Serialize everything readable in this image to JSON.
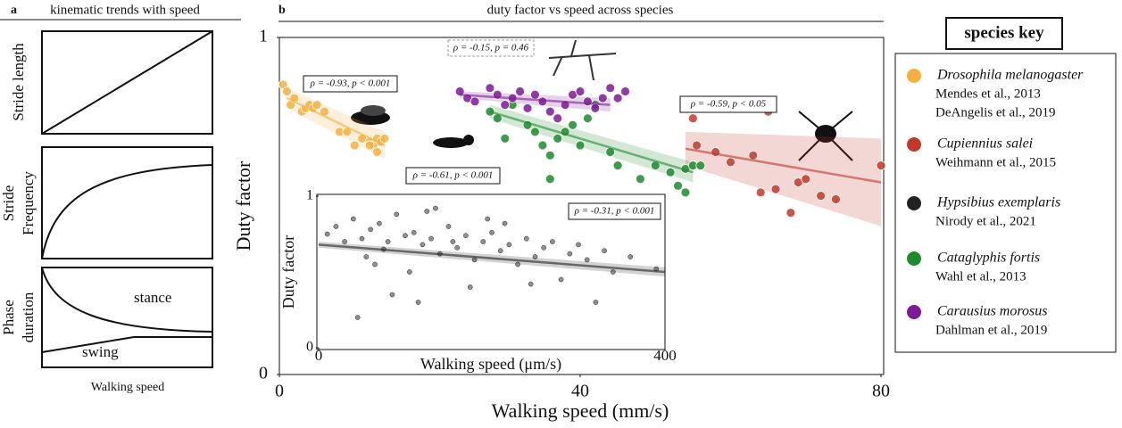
{
  "panel_a": {
    "label": "a",
    "title": "kinematic trends with speed",
    "plot_labels": [
      [
        "Stride length"
      ],
      [
        "Stride",
        "Frequency"
      ],
      [
        "Phase",
        "duration"
      ]
    ],
    "stance": "stance",
    "swing": "swing",
    "x_label": "Walking speed"
  },
  "legend_title": "species key",
  "chart_data": [
    {
      "type": "scatter",
      "panel_label": "b",
      "title": "duty factor vs speed  across species",
      "x_label": "Walking speed (mm/s)",
      "y_label": "Duty factor",
      "xlim": [
        0,
        80
      ],
      "ylim": [
        0,
        1
      ],
      "xticks": [
        0,
        40,
        80
      ],
      "yticks": [
        0,
        1
      ],
      "series": [
        {
          "name": "Drosophila melanogaster",
          "citations": [
            "Mendes et al., 2013",
            "DeAngelis et al., 2019"
          ],
          "color": "#f5b041",
          "annotation": "ρ = -0.93, p < 0.001",
          "x": [
            0.5,
            1,
            1.5,
            2,
            3,
            3.5,
            4,
            4.5,
            5,
            6,
            8,
            9,
            10,
            11,
            12,
            12.5,
            13,
            13.5,
            14,
            13,
            12
          ],
          "y": [
            0.86,
            0.84,
            0.8,
            0.82,
            0.78,
            0.79,
            0.8,
            0.79,
            0.8,
            0.78,
            0.72,
            0.72,
            0.68,
            0.7,
            0.69,
            0.68,
            0.7,
            0.69,
            0.7,
            0.66,
            0.68
          ],
          "fit": {
            "x": [
              1,
              14
            ],
            "y": [
              0.82,
              0.68
            ],
            "ci_upper": [
              0.85,
              0.72
            ],
            "ci_lower": [
              0.79,
              0.64
            ]
          }
        },
        {
          "name": "Cupiennius salei",
          "citations": [
            "Weihmann et al., 2015"
          ],
          "color": "#c0392b",
          "annotation": "ρ = -0.59, p < 0.05",
          "x": [
            55,
            55.5,
            60,
            63,
            64,
            66,
            68,
            69,
            70,
            72,
            74,
            80,
            65,
            58
          ],
          "y": [
            0.76,
            0.68,
            0.63,
            0.65,
            0.54,
            0.55,
            0.48,
            0.57,
            0.58,
            0.53,
            0.52,
            0.62,
            0.78,
            0.66
          ],
          "fit": {
            "x": [
              54,
              80
            ],
            "y": [
              0.67,
              0.57
            ],
            "ci_upper": [
              0.72,
              0.7
            ],
            "ci_lower": [
              0.62,
              0.44
            ]
          }
        },
        {
          "name": "Cataglyphis fortis",
          "citations": [
            "Wahl et al., 2013"
          ],
          "color": "#1e8a2e",
          "annotation": "ρ = -0.61, p < 0.001",
          "x": [
            28,
            29,
            30,
            31,
            33,
            34,
            35,
            36,
            37,
            38,
            39,
            40,
            41,
            42,
            44,
            45,
            48,
            50,
            52,
            53,
            54,
            55,
            54,
            56,
            36
          ],
          "y": [
            0.78,
            0.76,
            0.7,
            0.8,
            0.74,
            0.72,
            0.68,
            0.65,
            0.7,
            0.72,
            0.74,
            0.68,
            0.76,
            0.8,
            0.66,
            0.62,
            0.58,
            0.62,
            0.6,
            0.56,
            0.61,
            0.62,
            0.54,
            0.62,
            0.58
          ],
          "fit": {
            "x": [
              28,
              55
            ],
            "y": [
              0.78,
              0.6
            ],
            "ci_upper": [
              0.8,
              0.63
            ],
            "ci_lower": [
              0.76,
              0.57
            ]
          }
        },
        {
          "name": "Carausius morosus",
          "citations": [
            "Dahlman et al., 2019"
          ],
          "color": "#7d1a96",
          "annotation": "ρ = -0.15, p = 0.46",
          "x": [
            24,
            25,
            26,
            28,
            29,
            30,
            31,
            32,
            33,
            34,
            35,
            36,
            37,
            38,
            39,
            40,
            41,
            42,
            43,
            44,
            45,
            46
          ],
          "y": [
            0.84,
            0.82,
            0.81,
            0.85,
            0.83,
            0.8,
            0.82,
            0.84,
            0.79,
            0.83,
            0.81,
            0.78,
            0.76,
            0.8,
            0.83,
            0.84,
            0.81,
            0.79,
            0.82,
            0.85,
            0.82,
            0.84
          ],
          "fit": {
            "x": [
              24,
              44
            ],
            "y": [
              0.83,
              0.8
            ],
            "ci_upper": [
              0.84,
              0.82
            ],
            "ci_lower": [
              0.82,
              0.78
            ]
          }
        }
      ]
    },
    {
      "type": "scatter",
      "x_label": "Walking speed (μm/s)",
      "y_label": "Duty factor",
      "xlim": [
        0,
        400
      ],
      "ylim": [
        0,
        1
      ],
      "xticks": [
        0,
        400
      ],
      "yticks": [
        0,
        1
      ],
      "series": [
        {
          "name": "Hypsibius exemplaris",
          "citations": [
            "Nirody et al., 2021"
          ],
          "color": "#222222",
          "annotation": "ρ = -0.31, p < 0.001",
          "x": [
            10,
            20,
            30,
            40,
            50,
            55,
            60,
            70,
            75,
            80,
            90,
            100,
            105,
            110,
            120,
            125,
            130,
            140,
            150,
            155,
            160,
            170,
            180,
            190,
            200,
            210,
            220,
            230,
            240,
            250,
            260,
            270,
            280,
            290,
            300,
            310,
            320,
            340,
            360,
            390,
            45,
            85,
            135,
            175,
            215,
            65,
            115,
            195,
            245,
            330
          ],
          "y": [
            0.75,
            0.8,
            0.7,
            0.85,
            0.72,
            0.6,
            0.78,
            0.82,
            0.65,
            0.7,
            0.88,
            0.74,
            0.5,
            0.76,
            0.68,
            0.9,
            0.72,
            0.62,
            0.8,
            0.7,
            0.66,
            0.74,
            0.58,
            0.7,
            0.76,
            0.64,
            0.68,
            0.55,
            0.72,
            0.6,
            0.66,
            0.7,
            0.45,
            0.62,
            0.68,
            0.58,
            0.3,
            0.5,
            0.6,
            0.52,
            0.2,
            0.35,
            0.92,
            0.4,
            0.82,
            0.55,
            0.3,
            0.85,
            0.42,
            0.64
          ],
          "fit": {
            "x": [
              0,
              400
            ],
            "y": [
              0.68,
              0.5
            ],
            "ci_upper": [
              0.7,
              0.53
            ],
            "ci_lower": [
              0.66,
              0.47
            ]
          }
        }
      ]
    }
  ]
}
